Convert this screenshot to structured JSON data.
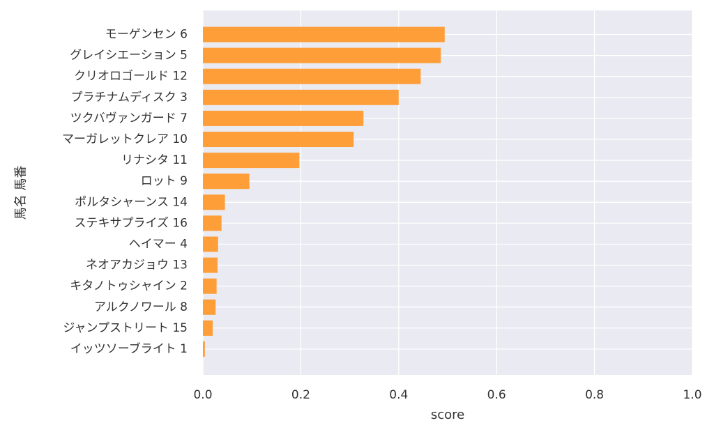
{
  "chart_data": {
    "type": "bar",
    "orientation": "horizontal",
    "xlabel": "score",
    "ylabel": "馬名 馬番",
    "xlim": [
      0.0,
      1.0
    ],
    "x_ticks": [
      "0.0",
      "0.2",
      "0.4",
      "0.6",
      "0.8",
      "1.0"
    ],
    "grid": true,
    "bar_color": "#ff9a2e",
    "background_color": "#eaeaf2",
    "categories": [
      "モーゲンセン 6",
      "グレイシエーション 5",
      "クリオロゴールド 12",
      "プラチナムディスク 3",
      "ツクバヴァンガード 7",
      "マーガレットクレア 10",
      "リナシタ 11",
      "ロット 9",
      "ポルタシャーンス 14",
      "ステキサプライズ 16",
      "ヘイマー 4",
      "ネオアカジョウ 13",
      "キタノトゥシャイン 2",
      "アルクノワール 8",
      "ジャンプストリート 15",
      "イッツソーブライト 1"
    ],
    "values": [
      0.494,
      0.486,
      0.445,
      0.4,
      0.328,
      0.308,
      0.197,
      0.095,
      0.045,
      0.038,
      0.031,
      0.03,
      0.028,
      0.026,
      0.02,
      0.004
    ]
  }
}
